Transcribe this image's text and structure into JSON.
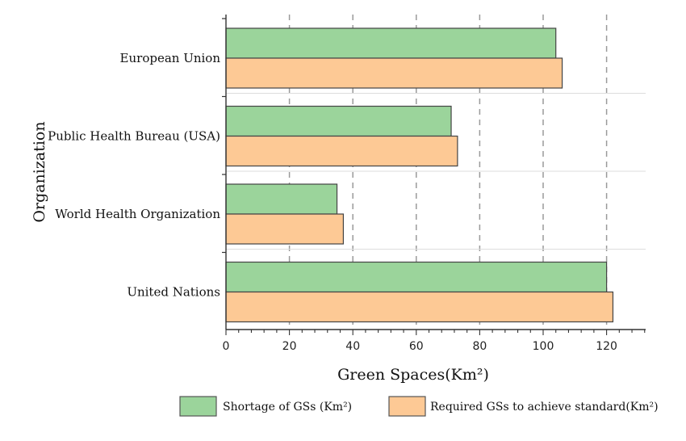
{
  "chart_data": {
    "type": "bar",
    "orientation": "horizontal",
    "categories": [
      "European Union",
      "Public Health Bureau (USA)",
      "World Health Organization",
      "United Nations"
    ],
    "series": [
      {
        "name": "Shortage of GSs (Km²)",
        "values": [
          104,
          71,
          35,
          120
        ],
        "color": "#9bd49b"
      },
      {
        "name": "Required GSs to achieve standard(Km²)",
        "values": [
          106,
          73,
          37,
          122
        ],
        "color": "#fdc995"
      }
    ],
    "xlabel": "Green Spaces(Km²)",
    "ylabel": "Organization",
    "xlim": [
      0,
      132
    ],
    "xticks": [
      "0",
      "20",
      "40",
      "60",
      "80",
      "100",
      "120"
    ],
    "grid": "vertical dashed",
    "legend": "bottom"
  }
}
